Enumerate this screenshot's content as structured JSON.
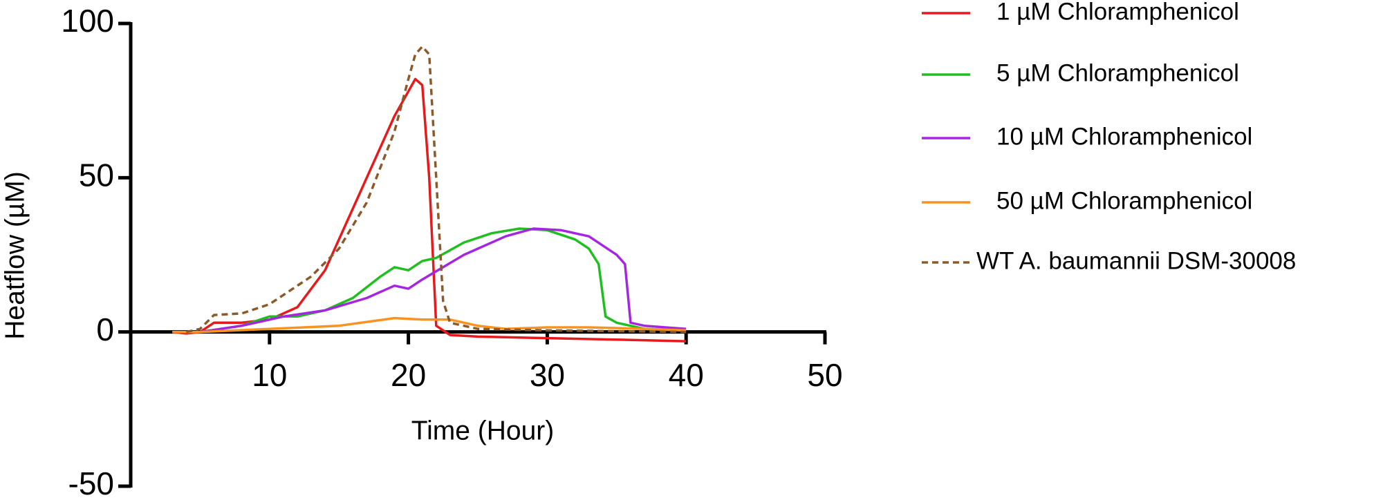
{
  "chart_data": {
    "type": "line",
    "xlabel": "Time (Hour)",
    "ylabel": "Heatflow (µM)",
    "xlim": [
      0,
      50
    ],
    "xticks": [
      10,
      20,
      30,
      40,
      50
    ],
    "ylim": [
      -50,
      100
    ],
    "yticks": [
      -50,
      0,
      50,
      100
    ],
    "legend": "right",
    "series": [
      {
        "name": "1 µM Chloramphenicol",
        "color": "#e8191b",
        "dash": false,
        "x": [
          3,
          4,
          5,
          6,
          8,
          10,
          12,
          14,
          16,
          18,
          19,
          20,
          20.5,
          21,
          21.5,
          22,
          23,
          25,
          30,
          35,
          40
        ],
        "values": [
          0,
          -0.5,
          0,
          3,
          3,
          4,
          8,
          20,
          40,
          60,
          70,
          78,
          82,
          80,
          50,
          2,
          -1,
          -1.5,
          -2,
          -2.5,
          -3
        ]
      },
      {
        "name": "5 µM Chloramphenicol",
        "color": "#1fbf1f",
        "dash": false,
        "x": [
          3,
          5,
          8,
          10,
          12,
          14,
          16,
          18,
          19,
          20,
          21,
          22,
          24,
          26,
          28,
          30,
          32,
          33,
          33.7,
          34.2,
          35,
          37,
          40
        ],
        "values": [
          0,
          0,
          2,
          5,
          5,
          7,
          11,
          18,
          21,
          20,
          23,
          24,
          29,
          32,
          33.5,
          33,
          30,
          27,
          22,
          5,
          3,
          1,
          0.5
        ]
      },
      {
        "name": "10 µM Chloramphenicol",
        "color": "#a526e0",
        "dash": false,
        "x": [
          3,
          5,
          8,
          10,
          11,
          14,
          17,
          19,
          20,
          21,
          24,
          27,
          29,
          31,
          33,
          35,
          35.6,
          36,
          37,
          40
        ],
        "values": [
          0,
          0,
          2,
          4,
          5,
          7,
          11,
          15,
          14,
          17,
          25,
          31,
          33.5,
          33,
          31,
          25,
          22,
          3,
          2,
          1
        ]
      },
      {
        "name": "50 µM Chloramphenicol",
        "color": "#f7931e",
        "dash": false,
        "x": [
          3,
          5,
          10,
          15,
          19,
          21,
          23,
          25,
          27,
          30,
          33,
          37,
          40
        ],
        "values": [
          0,
          0,
          1,
          2,
          4.5,
          4,
          4,
          2,
          1,
          1.5,
          1.5,
          1,
          0.5
        ]
      },
      {
        "name": "WT A. baumannii DSM-30008",
        "color": "#8b5a2b",
        "dash": true,
        "x": [
          4,
          5,
          6,
          8,
          10,
          12,
          13,
          15,
          17,
          19,
          20,
          20.5,
          21,
          21.5,
          22,
          22.5,
          23,
          25,
          30,
          40
        ],
        "values": [
          0,
          1,
          5.5,
          6,
          9,
          15,
          18,
          27,
          42,
          65,
          82,
          90,
          92.5,
          90,
          50,
          10,
          3,
          1,
          0.5,
          0
        ]
      }
    ]
  }
}
